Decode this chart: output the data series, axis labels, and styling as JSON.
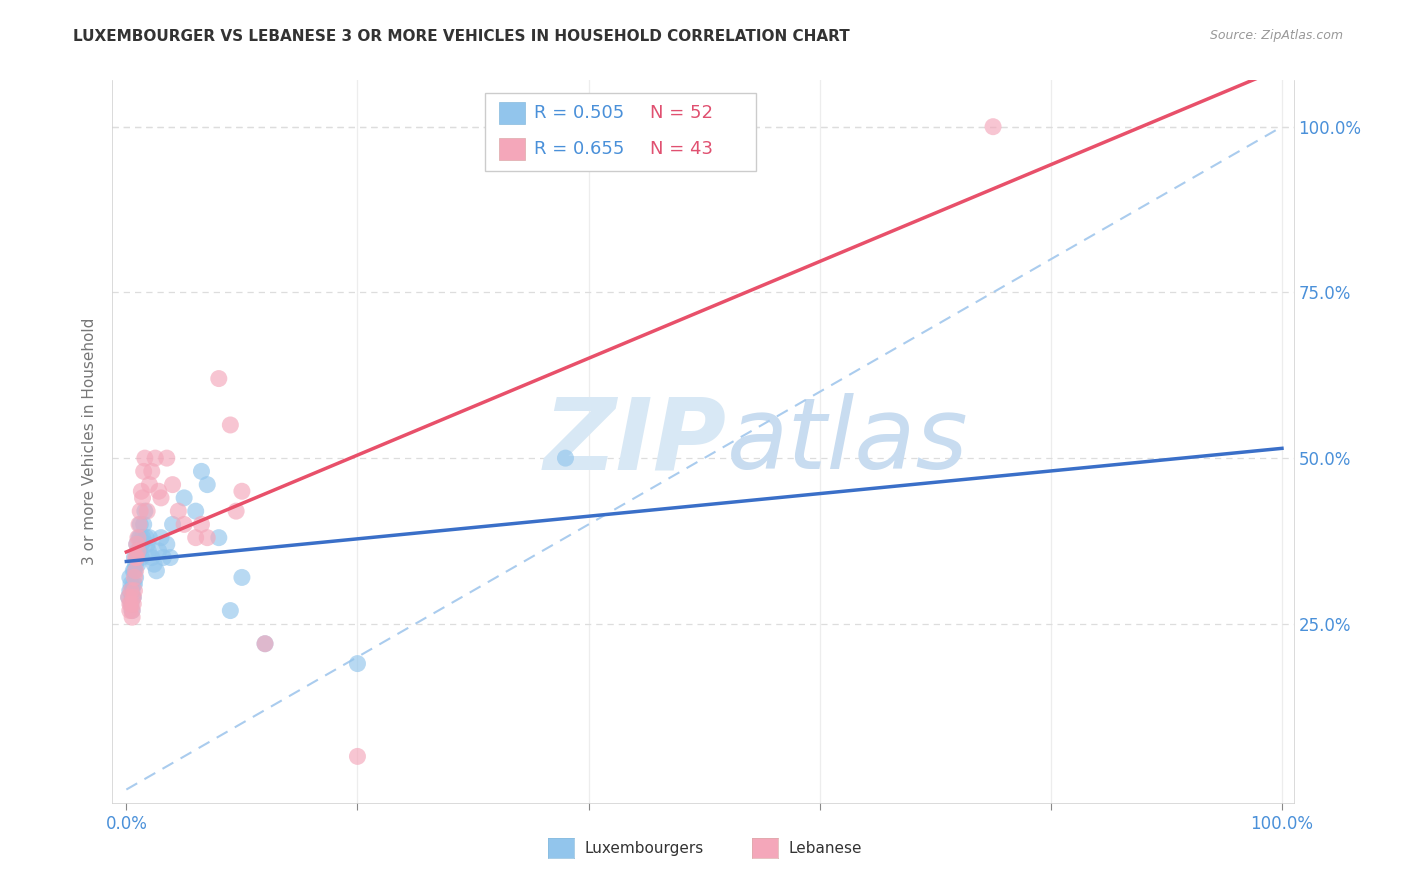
{
  "title": "LUXEMBOURGER VS LEBANESE 3 OR MORE VEHICLES IN HOUSEHOLD CORRELATION CHART",
  "source": "Source: ZipAtlas.com",
  "ylabel": "3 or more Vehicles in Household",
  "watermark_zip": "ZIP",
  "watermark_atlas": "atlas",
  "legend1_r": "R = 0.505",
  "legend1_n": "N = 52",
  "legend2_r": "R = 0.655",
  "legend2_n": "N = 43",
  "blue_color": "#92C5EC",
  "pink_color": "#F4A7BA",
  "blue_line_color": "#3A6FC8",
  "pink_line_color": "#E8506A",
  "dashed_line_color": "#AACCEE",
  "r_text_color": "#4A90D9",
  "n_text_color": "#E05070",
  "title_color": "#333333",
  "axis_tick_color": "#4A90D9",
  "ylabel_color": "#777777",
  "grid_color": "#DDDDDD",
  "blue_x": [
    0.002,
    0.003,
    0.003,
    0.004,
    0.004,
    0.005,
    0.005,
    0.005,
    0.006,
    0.006,
    0.006,
    0.007,
    0.007,
    0.007,
    0.008,
    0.008,
    0.009,
    0.009,
    0.01,
    0.01,
    0.011,
    0.011,
    0.012,
    0.012,
    0.013,
    0.013,
    0.014,
    0.015,
    0.016,
    0.017,
    0.018,
    0.019,
    0.02,
    0.022,
    0.024,
    0.026,
    0.028,
    0.03,
    0.032,
    0.035,
    0.038,
    0.04,
    0.05,
    0.06,
    0.065,
    0.07,
    0.08,
    0.09,
    0.1,
    0.12,
    0.2,
    0.38
  ],
  "blue_y": [
    0.29,
    0.3,
    0.32,
    0.28,
    0.31,
    0.3,
    0.29,
    0.27,
    0.33,
    0.31,
    0.29,
    0.35,
    0.33,
    0.31,
    0.34,
    0.32,
    0.37,
    0.35,
    0.36,
    0.34,
    0.38,
    0.36,
    0.4,
    0.38,
    0.37,
    0.35,
    0.38,
    0.4,
    0.42,
    0.38,
    0.37,
    0.36,
    0.38,
    0.35,
    0.34,
    0.33,
    0.36,
    0.38,
    0.35,
    0.37,
    0.35,
    0.4,
    0.44,
    0.42,
    0.48,
    0.46,
    0.38,
    0.27,
    0.32,
    0.22,
    0.19,
    0.5
  ],
  "pink_x": [
    0.002,
    0.003,
    0.003,
    0.004,
    0.004,
    0.005,
    0.005,
    0.006,
    0.006,
    0.007,
    0.007,
    0.008,
    0.008,
    0.009,
    0.009,
    0.01,
    0.01,
    0.011,
    0.012,
    0.013,
    0.014,
    0.015,
    0.016,
    0.018,
    0.02,
    0.022,
    0.025,
    0.028,
    0.03,
    0.035,
    0.04,
    0.045,
    0.05,
    0.06,
    0.065,
    0.07,
    0.08,
    0.09,
    0.095,
    0.1,
    0.12,
    0.2,
    0.75
  ],
  "pink_y": [
    0.29,
    0.28,
    0.27,
    0.3,
    0.28,
    0.27,
    0.26,
    0.29,
    0.28,
    0.32,
    0.3,
    0.35,
    0.33,
    0.37,
    0.35,
    0.38,
    0.36,
    0.4,
    0.42,
    0.45,
    0.44,
    0.48,
    0.5,
    0.42,
    0.46,
    0.48,
    0.5,
    0.45,
    0.44,
    0.5,
    0.46,
    0.42,
    0.4,
    0.38,
    0.4,
    0.38,
    0.62,
    0.55,
    0.42,
    0.45,
    0.22,
    0.05,
    1.0
  ]
}
